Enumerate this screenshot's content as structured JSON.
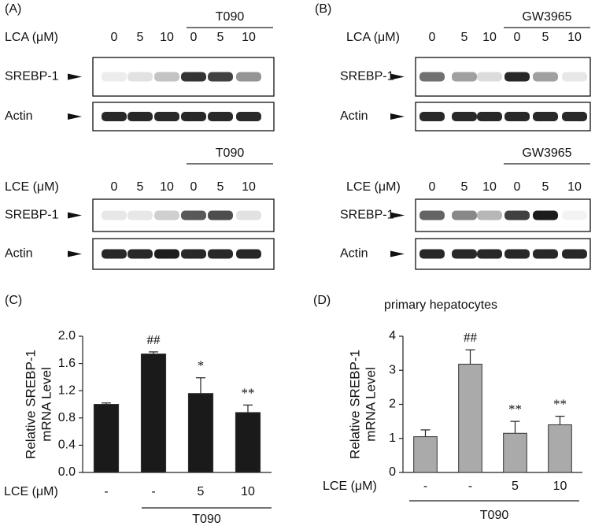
{
  "blots": [
    {
      "panel": "(A)",
      "groups": [
        {
          "treatment": "T090",
          "dose_label": "LCA (μM)",
          "doses": [
            "0",
            "5",
            "10",
            "0",
            "5",
            "10"
          ],
          "rows": [
            "SREBP-1",
            "Actin"
          ]
        },
        {
          "treatment": "T090",
          "dose_label": "LCE (μM)",
          "doses": [
            "0",
            "5",
            "10",
            "0",
            "5",
            "10"
          ],
          "rows": [
            "SREBP-1",
            "Actin"
          ]
        }
      ]
    },
    {
      "panel": "(B)",
      "groups": [
        {
          "treatment": "GW3965",
          "dose_label": "LCA (μM)",
          "doses": [
            "0",
            "5",
            "10",
            "0",
            "5",
            "10"
          ],
          "rows": [
            "SREBP-1",
            "Actin"
          ]
        },
        {
          "treatment": "GW3965",
          "dose_label": "LCE (μM)",
          "doses": [
            "0",
            "5",
            "10",
            "0",
            "5",
            "10"
          ],
          "rows": [
            "SREBP-1",
            "Actin"
          ]
        }
      ]
    }
  ],
  "chart_data": [
    {
      "type": "bar",
      "panel": "(C)",
      "ylabel": [
        "Relative SREBP-1",
        "mRNA Level"
      ],
      "x_row_label": "LCE (μM)",
      "categories": [
        "-",
        "-",
        "5",
        "10"
      ],
      "group_label": "T090",
      "values": [
        1.0,
        1.74,
        1.16,
        0.88
      ],
      "errors": [
        0.02,
        0.03,
        0.23,
        0.11
      ],
      "annotations": [
        null,
        "##",
        "*",
        "**"
      ],
      "color": "#1a1a1a",
      "ylim": [
        0,
        2
      ],
      "yticks": [
        {
          "value": 0,
          "label": "0.0"
        },
        0.4,
        0.8,
        1.2,
        1.6,
        {
          "value": 2,
          "label": "2.0"
        }
      ]
    },
    {
      "type": "bar",
      "panel": "(D)",
      "title": "primary hepatocytes",
      "ylabel": [
        "Relative SREBP-1",
        "mRNA Level"
      ],
      "x_row_label": "LCE (μM)",
      "categories": [
        "-",
        "-",
        "5",
        "10"
      ],
      "group_label": "T090",
      "values": [
        1.05,
        3.18,
        1.15,
        1.4
      ],
      "errors": [
        0.2,
        0.42,
        0.35,
        0.25
      ],
      "annotations": [
        null,
        "##",
        "**",
        "**"
      ],
      "color": "#aaaaaa",
      "ylim": [
        0,
        4
      ],
      "yticks": [
        0,
        1,
        2,
        3,
        4
      ]
    }
  ]
}
